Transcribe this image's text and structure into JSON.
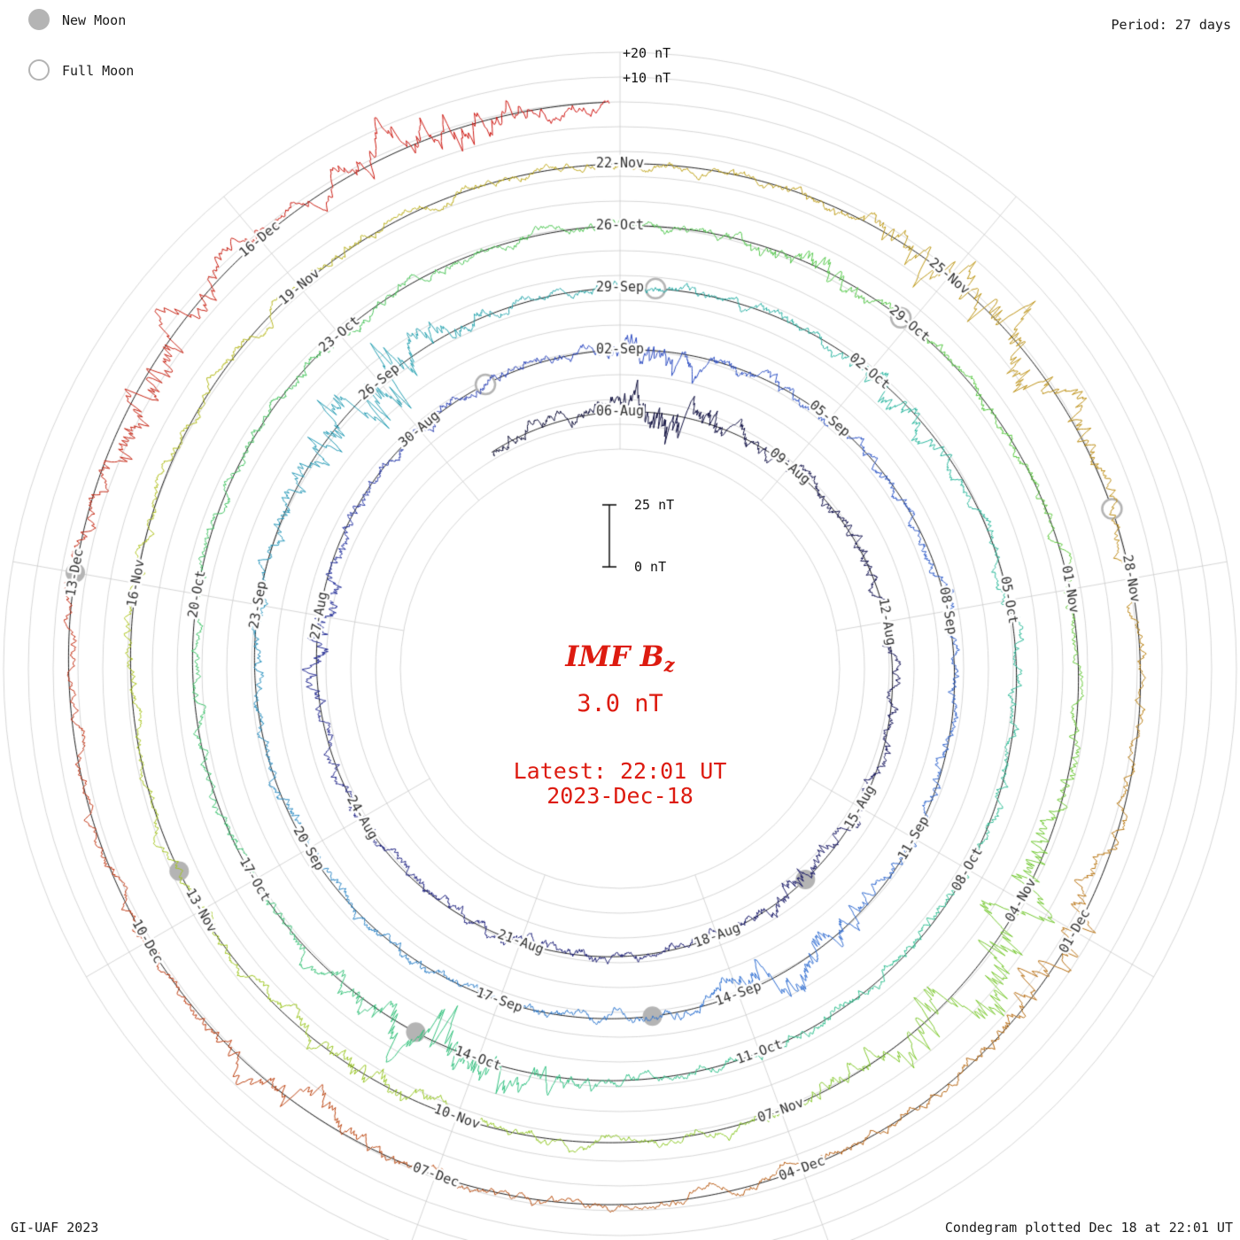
{
  "legend": {
    "new_moon_label": "New Moon",
    "full_moon_label": "Full Moon"
  },
  "period_label": "Period: 27 days",
  "annotations": {
    "plus20": "+20 nT",
    "plus10": "+10 nT",
    "scale_top": "25 nT",
    "scale_bottom": "0 nT"
  },
  "center": {
    "title_main": "IMF B",
    "title_sub": "z",
    "current_value": "3.0 nT",
    "latest_time": "Latest: 22:01 UT",
    "latest_date": "2023-Dec-18"
  },
  "footer": {
    "credit": "GI-UAF 2023",
    "plotted": "Condegram plotted Dec 18 at 22:01 UT"
  },
  "chart_data": {
    "type": "line",
    "subtype": "condegram-polar-spiral",
    "title": "IMF Bz",
    "units": "nT",
    "period_days": 27,
    "start_date": "2023-08-06",
    "end_date": "2023-12-18 22:01 UT",
    "current_bz_nT": 3.0,
    "total_days": 134.92,
    "trace_lead_in_days": 2.3,
    "label_step_days": 3,
    "date_labels": [
      "06-Aug",
      "09-Aug",
      "12-Aug",
      "15-Aug",
      "18-Aug",
      "21-Aug",
      "24-Aug",
      "27-Aug",
      "30-Aug",
      "02-Sep",
      "05-Sep",
      "08-Sep",
      "11-Sep",
      "14-Sep",
      "17-Sep",
      "20-Sep",
      "23-Sep",
      "26-Sep",
      "29-Sep",
      "02-Oct",
      "05-Oct",
      "08-Oct",
      "11-Oct",
      "14-Oct",
      "17-Oct",
      "20-Oct",
      "23-Oct",
      "26-Oct",
      "29-Oct",
      "01-Nov",
      "04-Nov",
      "07-Nov",
      "10-Nov",
      "13-Nov",
      "16-Nov",
      "19-Nov",
      "22-Nov",
      "25-Nov",
      "28-Nov",
      "01-Dec",
      "04-Dec",
      "07-Dec",
      "10-Dec",
      "13-Dec",
      "16-Dec"
    ],
    "rotation_start_dates": [
      "06-Aug",
      "02-Sep",
      "29-Sep",
      "26-Oct",
      "22-Nov"
    ],
    "radial_axis": {
      "grid_step_nT": 10,
      "ring_spacing_nT": 25,
      "scale_bar_nT": 25,
      "outer_grid_labels_nT": [
        10,
        20
      ],
      "spoke_step_deg": 40,
      "grid_on": true
    },
    "moons": {
      "new_moon_dates": [
        "16-Aug",
        "15-Sep",
        "14-Oct",
        "13-Nov",
        "12-Dec"
      ],
      "new_moon_days": [
        10.4,
        40.1,
        69.7,
        99.4,
        129.0
      ],
      "full_moon_dates": [
        "31-Aug",
        "29-Sep",
        "28-Oct",
        "27-Nov"
      ],
      "full_moon_days": [
        25.1,
        54.4,
        83.9,
        113.4
      ]
    },
    "colormap_time_stops": [
      {
        "t": 0.0,
        "color": "#0a0a30"
      },
      {
        "t": 0.08,
        "color": "#15155e"
      },
      {
        "t": 0.16,
        "color": "#252a8e"
      },
      {
        "t": 0.21,
        "color": "#2c48c0"
      },
      {
        "t": 0.3,
        "color": "#2e6ed2"
      },
      {
        "t": 0.37,
        "color": "#2795bb"
      },
      {
        "t": 0.43,
        "color": "#28b4a0"
      },
      {
        "t": 0.5,
        "color": "#2fc18c"
      },
      {
        "t": 0.58,
        "color": "#46c45e"
      },
      {
        "t": 0.64,
        "color": "#55c83c"
      },
      {
        "t": 0.7,
        "color": "#8cc828"
      },
      {
        "t": 0.76,
        "color": "#adc41d"
      },
      {
        "t": 0.8,
        "color": "#bfa81a"
      },
      {
        "t": 0.845,
        "color": "#bc8a14"
      },
      {
        "t": 0.885,
        "color": "#b56312"
      },
      {
        "t": 0.925,
        "color": "#bc4110"
      },
      {
        "t": 0.965,
        "color": "#c52513"
      },
      {
        "t": 1.0,
        "color": "#cf1310"
      }
    ],
    "activity_bursts": [
      {
        "day": 0.8,
        "amp": 3.2,
        "width": 0.9
      },
      {
        "day": 10.5,
        "amp": 1.2,
        "width": 0.6
      },
      {
        "day": 21.0,
        "amp": 1.0,
        "width": 0.8
      },
      {
        "day": 27.5,
        "amp": 1.8,
        "width": 0.7
      },
      {
        "day": 38.2,
        "amp": 2.6,
        "width": 0.8
      },
      {
        "day": 50.8,
        "amp": 4.2,
        "width": 1.1
      },
      {
        "day": 57.5,
        "amp": 1.5,
        "width": 0.6
      },
      {
        "day": 69.4,
        "amp": 4.0,
        "width": 1.0
      },
      {
        "day": 83.0,
        "amp": 1.6,
        "width": 0.6
      },
      {
        "day": 90.7,
        "amp": 4.5,
        "width": 1.3
      },
      {
        "day": 97.0,
        "amp": 1.5,
        "width": 0.7
      },
      {
        "day": 111.6,
        "amp": 4.2,
        "width": 1.1
      },
      {
        "day": 117.2,
        "amp": 2.2,
        "width": 0.8
      },
      {
        "day": 124.3,
        "amp": 1.8,
        "width": 0.6
      },
      {
        "day": 130.6,
        "amp": 3.4,
        "width": 0.9
      },
      {
        "day": 133.6,
        "amp": 3.6,
        "width": 0.8
      }
    ],
    "noise": {
      "seed": 7,
      "ar": 0.92,
      "sigma_nT": 1.05,
      "clip_nT": 27
    },
    "colors": {
      "accent_red": "#dd1b10",
      "moon_gray": "#b4b4b4",
      "grid": "#cccccc",
      "baseline": "#000000",
      "label_text": "#303030"
    }
  }
}
